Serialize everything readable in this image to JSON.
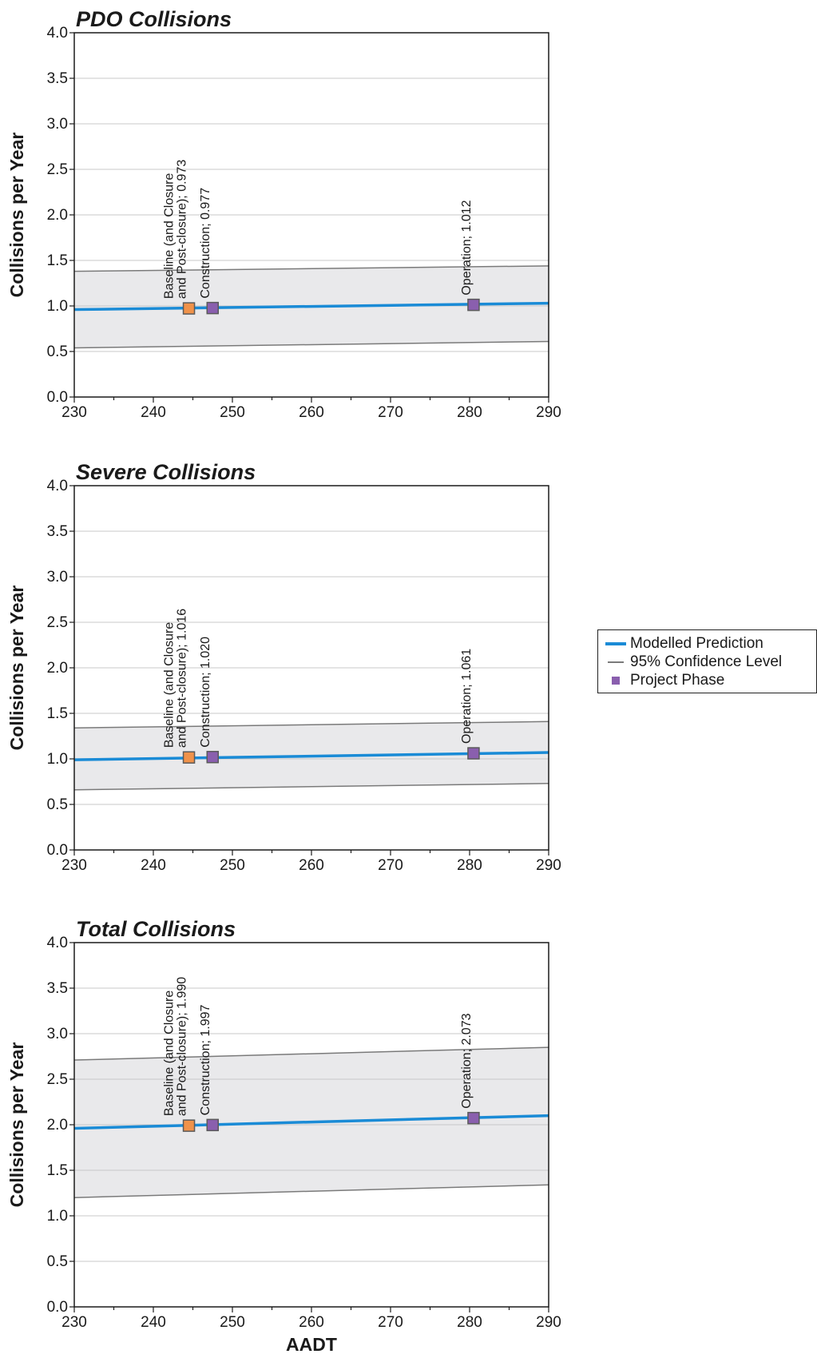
{
  "chart_data": [
    {
      "type": "line",
      "title": "PDO Collisions",
      "xlabel": "",
      "ylabel": "Collisions per Year",
      "xlim": [
        230,
        290
      ],
      "ylim": [
        0,
        4
      ],
      "xticks": [
        "230",
        "240",
        "250",
        "260",
        "270",
        "280",
        "290"
      ],
      "yticks": [
        "0.0",
        "0.5",
        "1.0",
        "1.5",
        "2.0",
        "2.5",
        "3.0",
        "3.5",
        "4.0"
      ],
      "grid": true,
      "prediction": {
        "x": [
          230,
          290
        ],
        "y": [
          0.96,
          1.03
        ]
      },
      "upper": {
        "x": [
          230,
          290
        ],
        "y": [
          1.38,
          1.44
        ]
      },
      "lower": {
        "x": [
          230,
          290
        ],
        "y": [
          0.54,
          0.61
        ]
      },
      "points": [
        {
          "x": 244.5,
          "y": 0.973,
          "phase": "baseline",
          "label": [
            "Baseline (and Closure",
            "and Post-closure); 0.973"
          ]
        },
        {
          "x": 247.5,
          "y": 0.977,
          "phase": "project",
          "label": [
            "Construction; 0.977"
          ]
        },
        {
          "x": 280.5,
          "y": 1.012,
          "phase": "project",
          "label": [
            "Operation; 1.012"
          ]
        }
      ]
    },
    {
      "type": "line",
      "title": "Severe Collisions",
      "xlabel": "",
      "ylabel": "Collisions per Year",
      "xlim": [
        230,
        290
      ],
      "ylim": [
        0,
        4
      ],
      "xticks": [
        "230",
        "240",
        "250",
        "260",
        "270",
        "280",
        "290"
      ],
      "yticks": [
        "0.0",
        "0.5",
        "1.0",
        "1.5",
        "2.0",
        "2.5",
        "3.0",
        "3.5",
        "4.0"
      ],
      "grid": true,
      "prediction": {
        "x": [
          230,
          290
        ],
        "y": [
          0.99,
          1.07
        ]
      },
      "upper": {
        "x": [
          230,
          290
        ],
        "y": [
          1.34,
          1.41
        ]
      },
      "lower": {
        "x": [
          230,
          290
        ],
        "y": [
          0.66,
          0.73
        ]
      },
      "points": [
        {
          "x": 244.5,
          "y": 1.016,
          "phase": "baseline",
          "label": [
            "Baseline (and Closure",
            "and Post-closure); 1.016"
          ]
        },
        {
          "x": 247.5,
          "y": 1.02,
          "phase": "project",
          "label": [
            "Construction; 1.020"
          ]
        },
        {
          "x": 280.5,
          "y": 1.061,
          "phase": "project",
          "label": [
            "Operation; 1.061"
          ]
        }
      ]
    },
    {
      "type": "line",
      "title": "Total Collisions",
      "xlabel": "AADT",
      "ylabel": "Collisions per Year",
      "xlim": [
        230,
        290
      ],
      "ylim": [
        0,
        4
      ],
      "xticks": [
        "230",
        "240",
        "250",
        "260",
        "270",
        "280",
        "290"
      ],
      "yticks": [
        "0.0",
        "0.5",
        "1.0",
        "1.5",
        "2.0",
        "2.5",
        "3.0",
        "3.5",
        "4.0"
      ],
      "grid": true,
      "prediction": {
        "x": [
          230,
          290
        ],
        "y": [
          1.96,
          2.1
        ]
      },
      "upper": {
        "x": [
          230,
          290
        ],
        "y": [
          2.71,
          2.85
        ]
      },
      "lower": {
        "x": [
          230,
          290
        ],
        "y": [
          1.2,
          1.34
        ]
      },
      "points": [
        {
          "x": 244.5,
          "y": 1.99,
          "phase": "baseline",
          "label": [
            "Baseline (and Closure",
            "and Post-closure); 1.990"
          ]
        },
        {
          "x": 247.5,
          "y": 1.997,
          "phase": "project",
          "label": [
            "Construction; 1.997"
          ]
        },
        {
          "x": 280.5,
          "y": 2.073,
          "phase": "project",
          "label": [
            "Operation; 2.073"
          ]
        }
      ]
    }
  ],
  "legend": {
    "placement": "right",
    "items": [
      {
        "key": "prediction",
        "label": "Modelled Prediction"
      },
      {
        "key": "confidence",
        "label": "95% Confidence Level"
      },
      {
        "key": "phase",
        "label": "Project Phase"
      }
    ]
  },
  "colors": {
    "prediction": "#1a8bd6",
    "confidence": "#7a7a7a",
    "band": "#e9e9eb",
    "grid": "#c8c8c8",
    "baseline_fill": "#f0924a",
    "project_fill": "#8a5fae",
    "marker_edge": "#5a5a5a"
  }
}
